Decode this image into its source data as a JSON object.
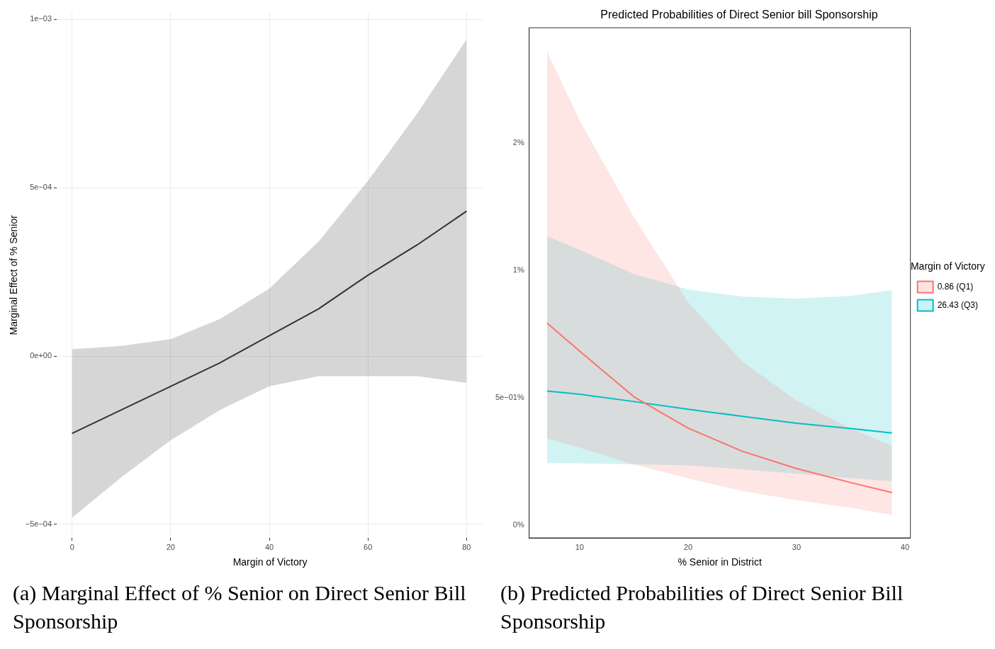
{
  "chart_data": [
    {
      "type": "line",
      "xlabel": "Margin of Victory",
      "ylabel": "Marginal Effect of % Senior",
      "x": [
        0,
        10,
        20,
        30,
        40,
        50,
        60,
        70,
        80
      ],
      "series": [
        {
          "color": "#333333",
          "values": [
            -0.00023,
            -0.00016,
            -9e-05,
            -2e-05,
            6e-05,
            0.00014,
            0.00024,
            0.00033,
            0.00043
          ],
          "lower": [
            -0.00048,
            -0.00036,
            -0.00025,
            -0.00016,
            -9e-05,
            -6e-05,
            -6e-05,
            -6e-05,
            -8e-05
          ],
          "upper": [
            2e-05,
            3e-05,
            5e-05,
            0.00011,
            0.0002,
            0.00034,
            0.00052,
            0.00072,
            0.00094
          ]
        }
      ],
      "xlim": [
        -3.1,
        83.4
      ],
      "xticks": [
        0,
        20,
        40,
        60,
        80
      ],
      "ylim": [
        -0.00054,
        0.00102
      ],
      "yticks": [
        {
          "value": -0.0005,
          "label": "−5e−04"
        },
        {
          "value": 0,
          "label": "0e+00"
        },
        {
          "value": 0.0005,
          "label": "5e−04"
        },
        {
          "value": 0.001,
          "label": "1e−03"
        }
      ],
      "grid": true,
      "legend": false,
      "annotations": [
        "(a) Marginal Effect of % Senior on Direct Senior Bill Sponsorship"
      ]
    },
    {
      "type": "line",
      "title": "Predicted Probabilities of Direct Senior bill Sponsorship",
      "xlabel": "% Senior in District",
      "legend_title": "Margin of Victory",
      "x": [
        7,
        10,
        15,
        20,
        25,
        30,
        35,
        38.8
      ],
      "series": [
        {
          "name": "0.86 (Q1)",
          "color": "#f8766d",
          "values": [
            0.794,
            0.684,
            0.505,
            0.382,
            0.291,
            0.223,
            0.168,
            0.129
          ],
          "lower": [
            0.341,
            0.305,
            0.239,
            0.184,
            0.135,
            0.099,
            0.069,
            0.041
          ],
          "upper": [
            1.86,
            1.59,
            1.21,
            0.876,
            0.643,
            0.49,
            0.38,
            0.313
          ]
        },
        {
          "name": "26.43 (Q3)",
          "color": "#00bfc4",
          "values": [
            0.527,
            0.515,
            0.486,
            0.456,
            0.428,
            0.401,
            0.38,
            0.363
          ],
          "lower": [
            0.245,
            0.243,
            0.24,
            0.236,
            0.22,
            0.203,
            0.186,
            0.173
          ],
          "upper": [
            1.135,
            1.082,
            0.986,
            0.926,
            0.898,
            0.89,
            0.901,
            0.923
          ]
        }
      ],
      "xlim": [
        5.35,
        40.5
      ],
      "xticks": [
        10,
        20,
        30,
        40
      ],
      "ylim": [
        -0.049,
        1.953
      ],
      "yticks": [
        {
          "value": 0,
          "label": "0%"
        },
        {
          "value": 0.5,
          "label": "5e−01%"
        },
        {
          "value": 1,
          "label": "1%"
        },
        {
          "value": 1.5,
          "label": "2%"
        }
      ],
      "grid": false,
      "legend": "right",
      "annotations": [
        "(b) Predicted Probabilities of Direct Senior Bill Sponsorship"
      ]
    }
  ]
}
